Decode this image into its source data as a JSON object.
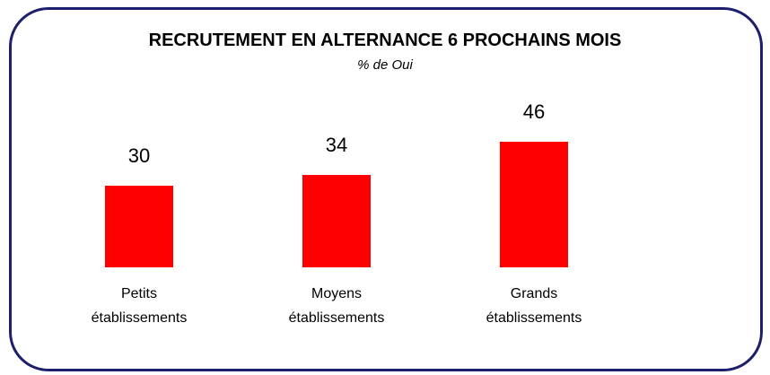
{
  "chart_data": {
    "type": "bar",
    "title": "RECRUTEMENT EN ALTERNANCE 6 PROCHAINS MOIS",
    "subtitle": "% de Oui",
    "categories": [
      "Petits établissements",
      "Moyens établissements",
      "Grands établissements"
    ],
    "values": [
      30,
      34,
      46
    ],
    "color": "#ff0000"
  }
}
